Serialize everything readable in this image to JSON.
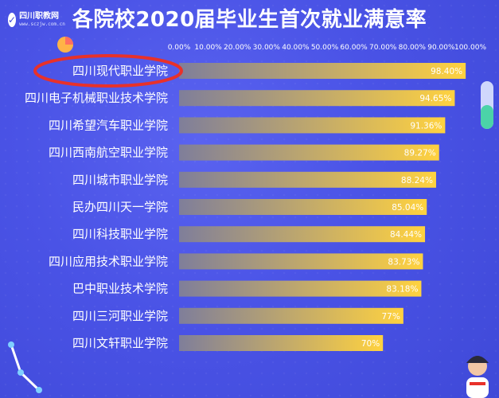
{
  "brand": {
    "name": "四川职教网",
    "url": "www.sczjw.com.cn"
  },
  "header": {
    "title": "各院校2020届毕业生首次就业满意率"
  },
  "colors": {
    "background": "#4a53e6",
    "bar_start": "#7f7e9a",
    "bar_end": "#ffd23f",
    "highlight_ring": "#e8312a",
    "text": "#ffffff"
  },
  "chart_data": {
    "type": "bar",
    "orientation": "horizontal",
    "title": "各院校2020届毕业生首次就业满意率",
    "xlabel": "",
    "ylabel": "",
    "xlim": [
      0,
      100
    ],
    "x_ticks": [
      "0.00%",
      "10.00%",
      "20.00%",
      "30.00%",
      "40.00%",
      "50.00%",
      "60.00%",
      "70.00%",
      "80.00%",
      "90.00%",
      "100.00%"
    ],
    "categories": [
      "四川现代职业学院",
      "四川电子机械职业技术学院",
      "四川希望汽车职业学院",
      "四川西南航空职业学院",
      "四川城市职业学院",
      "民办四川天一学院",
      "四川科技职业学院",
      "四川应用技术职业学院",
      "巴中职业技术学院",
      "四川三河职业学院",
      "四川文轩职业学院"
    ],
    "values": [
      98.4,
      94.65,
      91.36,
      89.27,
      88.24,
      85.04,
      84.44,
      83.73,
      83.18,
      77,
      70
    ],
    "value_labels": [
      "98.40%",
      "94.65%",
      "91.36%",
      "89.27%",
      "88.24%",
      "85.04%",
      "84.44%",
      "83.73%",
      "83.18%",
      "77%",
      "70%"
    ],
    "highlighted_category": "四川现代职业学院",
    "grid": false,
    "legend": "none"
  }
}
